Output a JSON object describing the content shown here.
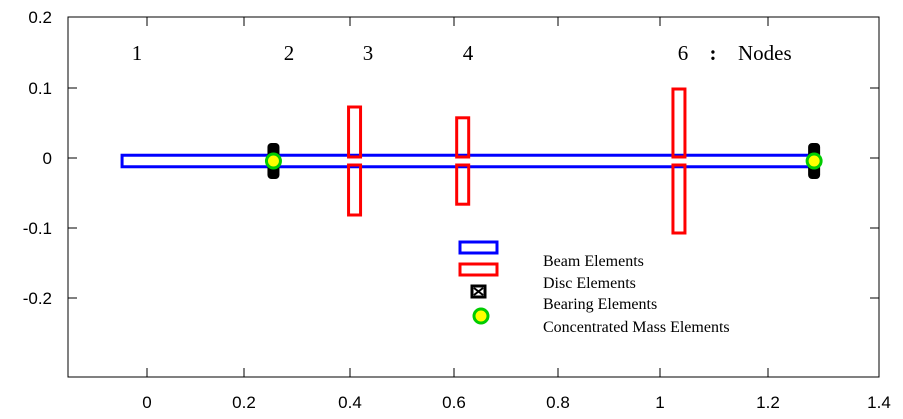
{
  "figure": {
    "x_ticks": [
      "0",
      "0.2",
      "0.4",
      "0.6",
      "0.8",
      "1",
      "1.2",
      "1.4"
    ],
    "y_ticks": [
      "0.2",
      "0.1",
      "0",
      "-0.1",
      "-0.2"
    ],
    "node_labels": [
      "1",
      "2",
      "3",
      "4",
      "6"
    ],
    "nodes_colon": ":",
    "nodes_word": "Nodes",
    "legend": {
      "beam": "Beam Elements",
      "disc": "Disc Elements",
      "bearing": "Bearing Elements",
      "mass": "Concentrated Mass Elements"
    }
  },
  "chart_data": {
    "type": "rotor-diagram",
    "xlim": [
      -0.1,
      1.4
    ],
    "ylim": [
      -0.3,
      0.2
    ],
    "beam": {
      "x_start": 0,
      "x_end": 1.28,
      "half_height": 0.008,
      "color": "#0000ff"
    },
    "discs": [
      {
        "x": 0.43,
        "radius": 0.075,
        "color": "#ff0000"
      },
      {
        "x": 0.63,
        "radius": 0.06,
        "color": "#ff0000"
      },
      {
        "x": 1.03,
        "radius": 0.1,
        "color": "#ff0000"
      }
    ],
    "bearings": [
      {
        "x": 0.28
      },
      {
        "x": 1.28
      }
    ],
    "concentrated_masses": [
      {
        "x": 0.28
      },
      {
        "x": 1.28
      }
    ],
    "node_x": [
      0,
      0.28,
      0.43,
      0.63,
      1.03
    ],
    "colors": {
      "beam": "#0000ff",
      "disc": "#ff0000",
      "bearing": "#000000",
      "mass_fill": "#ffff00",
      "mass_edge": "#00cc00"
    }
  }
}
